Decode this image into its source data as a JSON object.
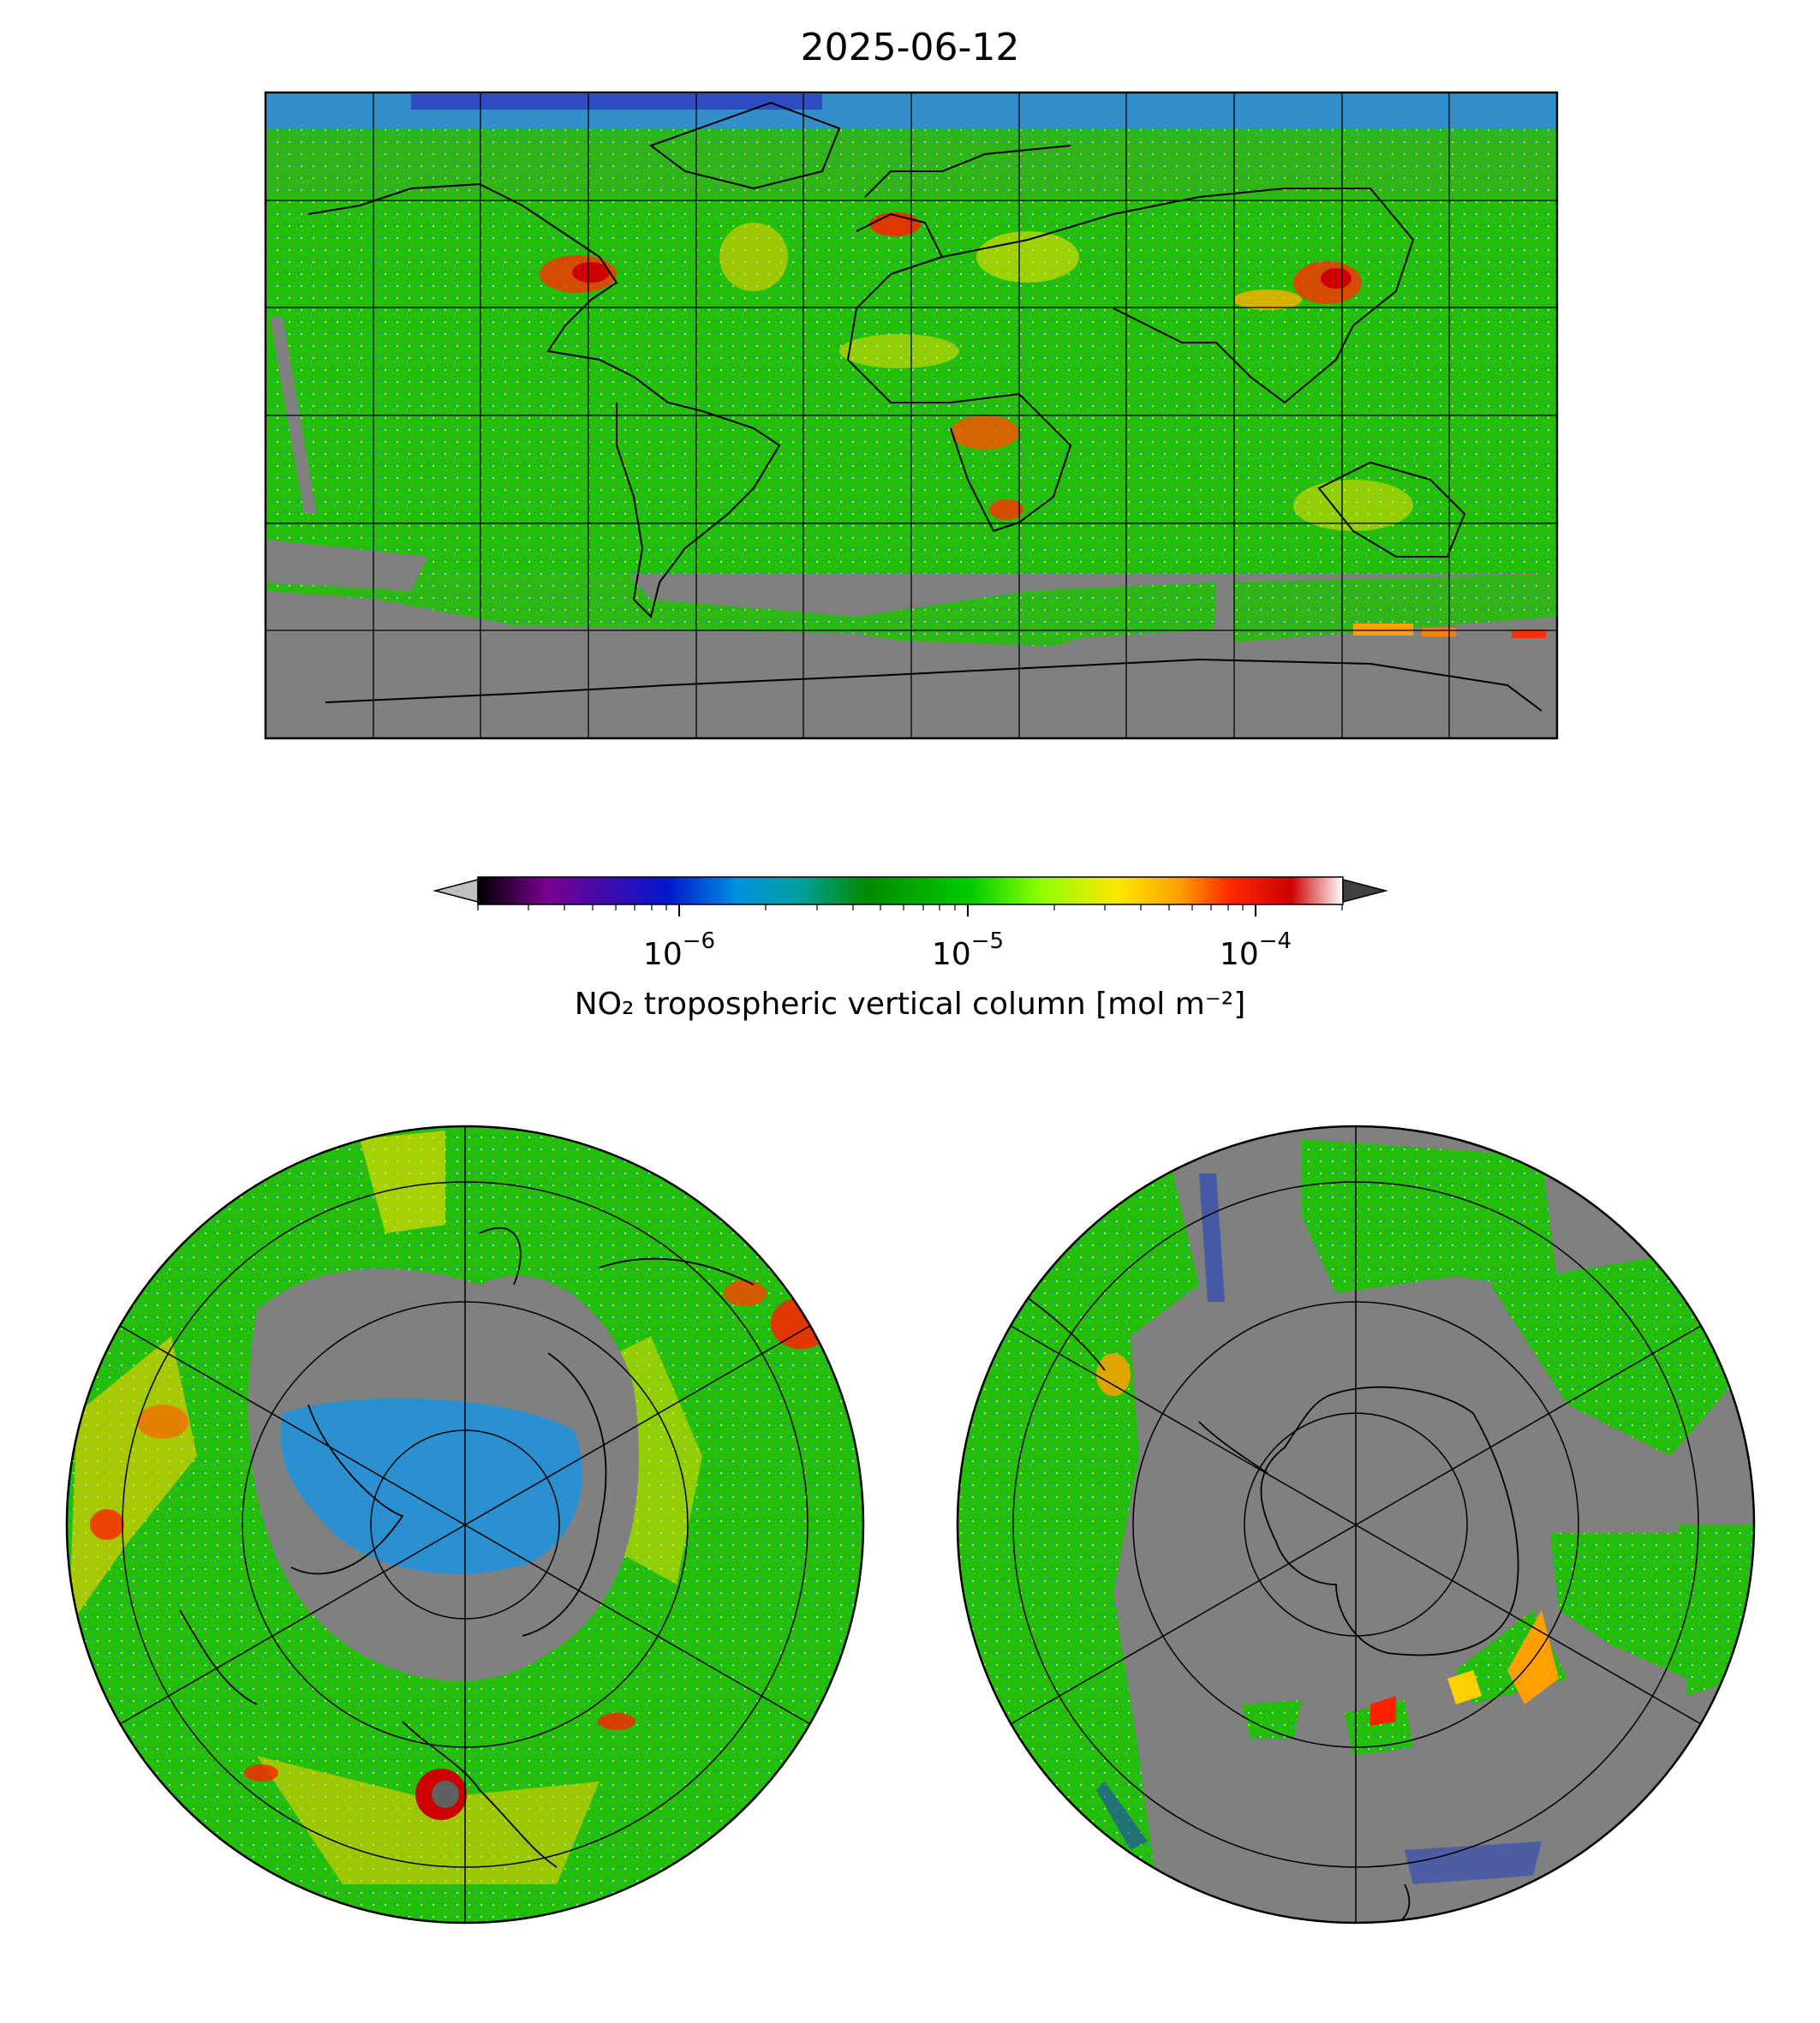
{
  "title": "2025-06-12",
  "colorbar": {
    "label": "NO₂ tropospheric vertical column [mol m⁻²]",
    "scale": "log",
    "range": [
      "2e-7",
      "2e-4"
    ],
    "extend": "both",
    "ticks": [
      {
        "base": "10",
        "exp": "−6"
      },
      {
        "base": "10",
        "exp": "−5"
      },
      {
        "base": "10",
        "exp": "−4"
      }
    ],
    "colormap": [
      "#000000",
      "#7a0090",
      "#0018cc",
      "#0090e0",
      "#00a0a0",
      "#008a00",
      "#00cc00",
      "#8cff00",
      "#ffe600",
      "#ffa000",
      "#ff2800",
      "#cc0000",
      "#ffffff"
    ],
    "under_color": "#bfbfbf",
    "over_color": "#404040"
  },
  "maps": [
    {
      "name": "global",
      "projection": "plate-carree",
      "missing_color": "#808080"
    },
    {
      "name": "north-polar",
      "projection": "north-polar-stereographic"
    },
    {
      "name": "south-polar",
      "projection": "south-polar-stereographic"
    }
  ]
}
